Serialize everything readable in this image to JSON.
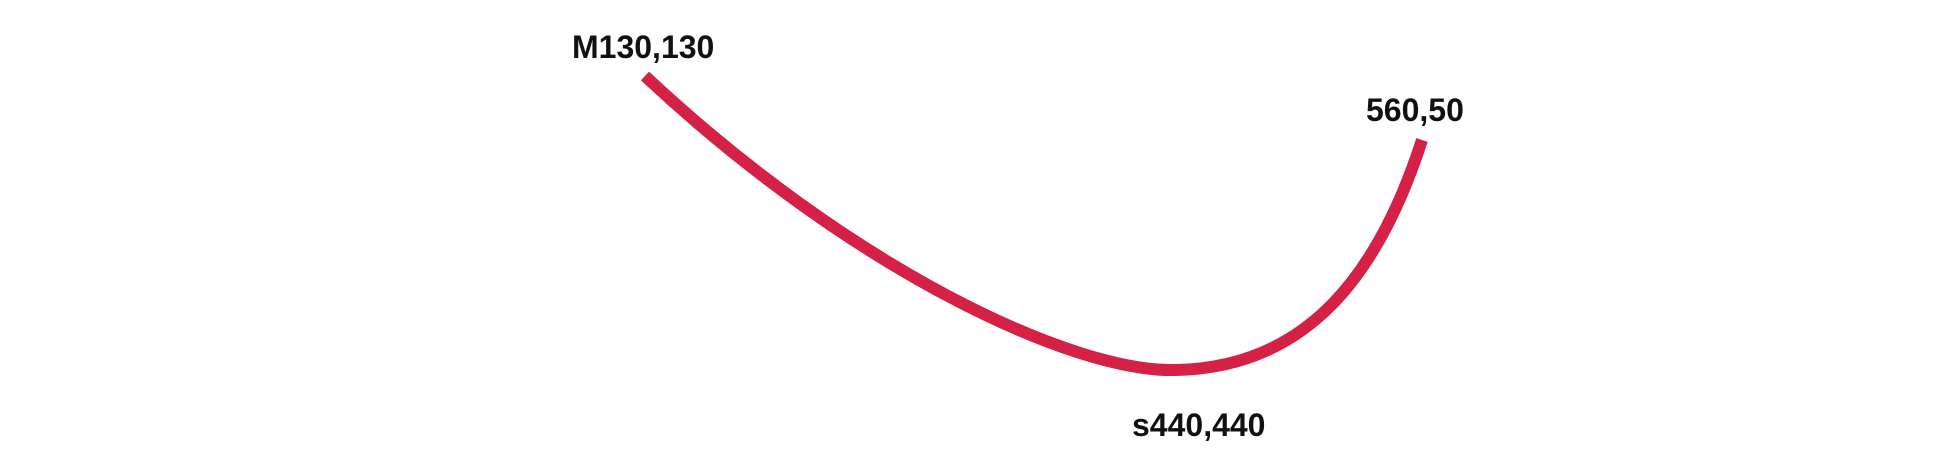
{
  "diagram": {
    "labels": {
      "start": "M130,130",
      "end": "560,50",
      "control": "s440,440"
    },
    "colors": {
      "curve": "#d42145",
      "text": "#111111",
      "background": "#ffffff"
    }
  }
}
